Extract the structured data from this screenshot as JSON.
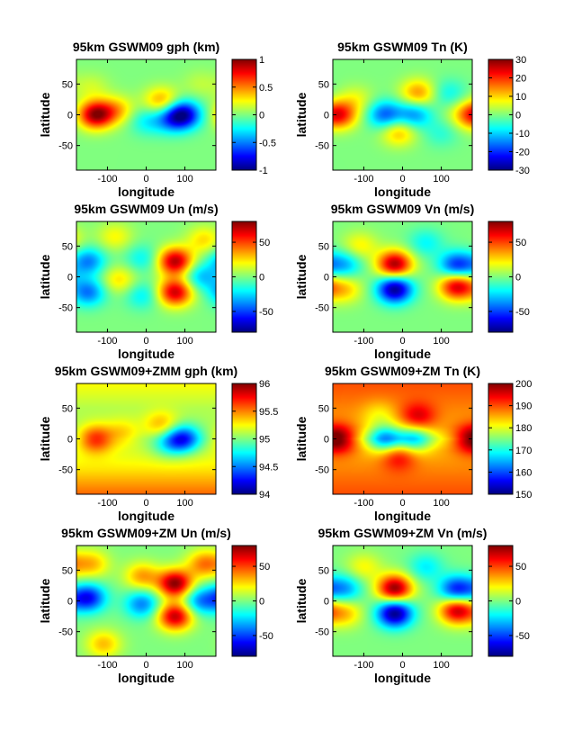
{
  "chart_data": [
    {
      "type": "heatmap",
      "title": "95km GSWM09 gph (km)",
      "xlabel": "longitude",
      "ylabel": "latitude",
      "xlim": [
        -180,
        180
      ],
      "ylim": [
        -90,
        90
      ],
      "xticks": [
        "-100",
        "0",
        "100"
      ],
      "yticks": [
        "50",
        "0",
        "-50"
      ],
      "clim": [
        -1,
        1
      ],
      "cticks": [
        "1",
        "0.5",
        "0",
        "-0.5",
        "-1"
      ],
      "blobs": [
        {
          "lon": -130,
          "lat": 0,
          "value": 0.95
        },
        {
          "lon": -75,
          "lat": 8,
          "value": 0.35
        },
        {
          "lon": 40,
          "lat": 22,
          "value": 0.45
        },
        {
          "lon": 95,
          "lat": 0,
          "value": -0.9
        },
        {
          "lon": 60,
          "lat": -8,
          "value": -0.35
        },
        {
          "lon": 0,
          "lat": -10,
          "value": -0.25
        },
        {
          "lon": -140,
          "lat": 45,
          "value": 0.15
        },
        {
          "lon": 140,
          "lat": 50,
          "value": 0.12
        }
      ]
    },
    {
      "type": "heatmap",
      "title": "95km GSWM09 Tn (K)",
      "xlabel": "longitude",
      "ylabel": "latitude",
      "xlim": [
        -180,
        180
      ],
      "ylim": [
        -90,
        90
      ],
      "xticks": [
        "-100",
        "0",
        "100"
      ],
      "yticks": [
        "50",
        "0",
        "-50"
      ],
      "clim": [
        -30,
        30
      ],
      "cticks": [
        "30",
        "20",
        "10",
        "0",
        "-10",
        "-20",
        "-30"
      ],
      "blobs": [
        {
          "lon": -160,
          "lat": 0,
          "value": 18
        },
        {
          "lon": 165,
          "lat": 0,
          "value": 10
        },
        {
          "lon": -45,
          "lat": 0,
          "value": -17
        },
        {
          "lon": 30,
          "lat": 0,
          "value": -14
        },
        {
          "lon": 40,
          "lat": 35,
          "value": 14
        },
        {
          "lon": -10,
          "lat": -28,
          "value": 12
        },
        {
          "lon": -120,
          "lat": 25,
          "value": 6
        },
        {
          "lon": 120,
          "lat": 35,
          "value": -7
        },
        {
          "lon": 100,
          "lat": -30,
          "value": -5
        }
      ]
    },
    {
      "type": "heatmap",
      "title": "95km GSWM09 Un (m/s)",
      "xlabel": "longitude",
      "ylabel": "latitude",
      "xlim": [
        -180,
        180
      ],
      "ylim": [
        -90,
        90
      ],
      "xticks": [
        "-100",
        "0",
        "100"
      ],
      "yticks": [
        "50",
        "0",
        "-50"
      ],
      "clim": [
        -80,
        80
      ],
      "cticks": [
        "50",
        "0",
        "-50"
      ],
      "blobs": [
        {
          "lon": 75,
          "lat": 25,
          "value": 72
        },
        {
          "lon": 75,
          "lat": -25,
          "value": 68
        },
        {
          "lon": -150,
          "lat": 25,
          "value": -40
        },
        {
          "lon": -150,
          "lat": -25,
          "value": -42
        },
        {
          "lon": -70,
          "lat": -5,
          "value": 25
        },
        {
          "lon": -10,
          "lat": 30,
          "value": -20
        },
        {
          "lon": -10,
          "lat": -30,
          "value": -22
        },
        {
          "lon": 140,
          "lat": 0,
          "value": -30
        },
        {
          "lon": -80,
          "lat": 65,
          "value": 20
        },
        {
          "lon": 150,
          "lat": 60,
          "value": 25
        }
      ]
    },
    {
      "type": "heatmap",
      "title": "95km GSWM09 Vn (m/s)",
      "xlabel": "longitude",
      "ylabel": "latitude",
      "xlim": [
        -180,
        180
      ],
      "ylim": [
        -90,
        90
      ],
      "xticks": [
        "-100",
        "0",
        "100"
      ],
      "yticks": [
        "50",
        "0",
        "-50"
      ],
      "clim": [
        -80,
        80
      ],
      "cticks": [
        "50",
        "0",
        "-50"
      ],
      "blobs": [
        {
          "lon": -20,
          "lat": 20,
          "value": 75
        },
        {
          "lon": -20,
          "lat": -20,
          "value": -78
        },
        {
          "lon": 140,
          "lat": 18,
          "value": -55
        },
        {
          "lon": 140,
          "lat": -15,
          "value": 68
        },
        {
          "lon": -150,
          "lat": 20,
          "value": -32
        },
        {
          "lon": -150,
          "lat": -20,
          "value": 28
        },
        {
          "lon": 60,
          "lat": 55,
          "value": -20
        },
        {
          "lon": -110,
          "lat": 50,
          "value": 22
        }
      ]
    },
    {
      "type": "heatmap",
      "title": "95km GSWM09+ZMM gph (km)",
      "xlabel": "longitude",
      "ylabel": "latitude",
      "xlim": [
        -180,
        180
      ],
      "ylim": [
        -90,
        90
      ],
      "xticks": [
        "-100",
        "0",
        "100"
      ],
      "yticks": [
        "50",
        "0",
        "-50"
      ],
      "clim": [
        94,
        96
      ],
      "cticks": [
        "96",
        "95.5",
        "95",
        "94.5",
        "94"
      ],
      "background": {
        "type": "latitude_gradient",
        "lat": [
          90,
          50,
          0,
          -50,
          -90
        ],
        "value": [
          95.25,
          95.1,
          95.05,
          95.3,
          95.55
        ]
      },
      "blobs": [
        {
          "lon": -130,
          "lat": 0,
          "value": 0.6
        },
        {
          "lon": 40,
          "lat": 22,
          "value": 0.35
        },
        {
          "lon": 95,
          "lat": 0,
          "value": -0.75
        },
        {
          "lon": 55,
          "lat": -8,
          "value": -0.3
        },
        {
          "lon": -60,
          "lat": 10,
          "value": 0.25
        }
      ]
    },
    {
      "type": "heatmap",
      "title": "95km GSWM09+ZM Tn (K)",
      "xlabel": "longitude",
      "ylabel": "latitude",
      "xlim": [
        -180,
        180
      ],
      "ylim": [
        -90,
        90
      ],
      "xticks": [
        "-100",
        "0",
        "100"
      ],
      "yticks": [
        "50",
        "0",
        "-50"
      ],
      "clim": [
        150,
        200
      ],
      "cticks": [
        "200",
        "190",
        "180",
        "170",
        "160",
        "150"
      ],
      "background": {
        "type": "latitude_gradient",
        "lat": [
          90,
          60,
          20,
          0,
          -20,
          -60,
          -90
        ],
        "value": [
          190,
          188,
          185,
          181,
          185,
          188,
          190
        ]
      },
      "blobs": [
        {
          "lon": -160,
          "lat": 0,
          "value": 14
        },
        {
          "lon": 165,
          "lat": 0,
          "value": 9
        },
        {
          "lon": -45,
          "lat": 0,
          "value": -18
        },
        {
          "lon": 30,
          "lat": 0,
          "value": -15
        },
        {
          "lon": 40,
          "lat": 35,
          "value": 10
        },
        {
          "lon": -10,
          "lat": -28,
          "value": 9
        },
        {
          "lon": -60,
          "lat": 40,
          "value": -5
        }
      ]
    },
    {
      "type": "heatmap",
      "title": "95km GSWM09+ZM Un (m/s)",
      "xlabel": "longitude",
      "ylabel": "latitude",
      "xlim": [
        -180,
        180
      ],
      "ylim": [
        -90,
        90
      ],
      "xticks": [
        "-100",
        "0",
        "100"
      ],
      "yticks": [
        "50",
        "0",
        "-50"
      ],
      "clim": [
        -80,
        80
      ],
      "cticks": [
        "50",
        "0",
        "-50"
      ],
      "blobs": [
        {
          "lon": 75,
          "lat": 28,
          "value": 78
        },
        {
          "lon": 75,
          "lat": -25,
          "value": 70
        },
        {
          "lon": -150,
          "lat": 5,
          "value": -60
        },
        {
          "lon": -140,
          "lat": 60,
          "value": 30
        },
        {
          "lon": 150,
          "lat": 60,
          "value": 40
        },
        {
          "lon": -10,
          "lat": 40,
          "value": 35
        },
        {
          "lon": -10,
          "lat": -5,
          "value": -40
        },
        {
          "lon": 140,
          "lat": 0,
          "value": -40
        },
        {
          "lon": -110,
          "lat": -70,
          "value": 30
        }
      ]
    },
    {
      "type": "heatmap",
      "title": "95km GSWM09+ZM Vn (m/s)",
      "xlabel": "longitude",
      "ylabel": "latitude",
      "xlim": [
        -180,
        180
      ],
      "ylim": [
        -90,
        90
      ],
      "xticks": [
        "-100",
        "0",
        "100"
      ],
      "yticks": [
        "50",
        "0",
        "-50"
      ],
      "clim": [
        -80,
        80
      ],
      "cticks": [
        "50",
        "0",
        "-50"
      ],
      "blobs": [
        {
          "lon": -20,
          "lat": 20,
          "value": 78
        },
        {
          "lon": -20,
          "lat": -20,
          "value": -80
        },
        {
          "lon": 140,
          "lat": 18,
          "value": -58
        },
        {
          "lon": 140,
          "lat": -15,
          "value": 70
        },
        {
          "lon": -150,
          "lat": 20,
          "value": -35
        },
        {
          "lon": -150,
          "lat": -20,
          "value": 30
        },
        {
          "lon": 60,
          "lat": 55,
          "value": -22
        },
        {
          "lon": -100,
          "lat": 55,
          "value": 20
        }
      ]
    }
  ]
}
